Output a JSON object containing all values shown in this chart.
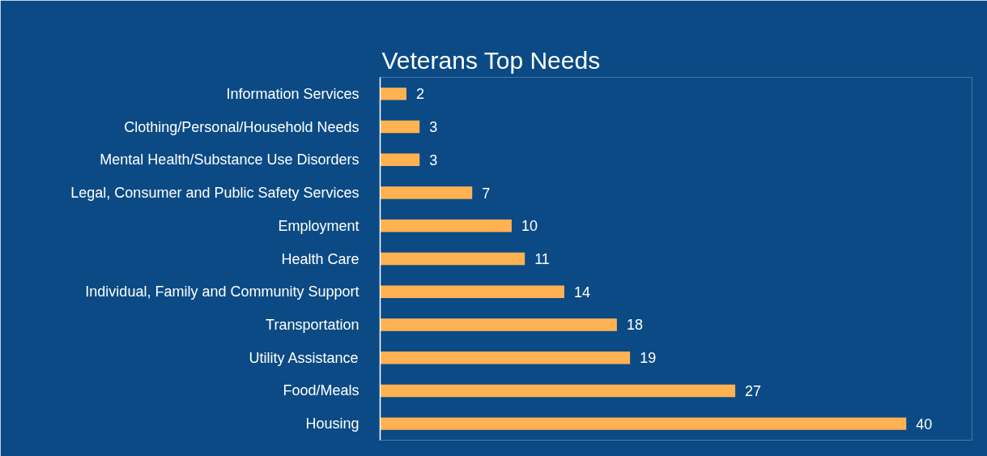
{
  "chart_data": {
    "type": "bar",
    "orientation": "horizontal",
    "title": "Veterans Top Needs",
    "categories": [
      "Information Services",
      "Clothing/Personal/Household Needs",
      "Mental Health/Substance Use Disorders",
      "Legal, Consumer and Public Safety Services",
      "Employment",
      "Health Care",
      "Individual, Family and Community Support",
      "Transportation",
      "Utility Assistance",
      "Food/Meals",
      "Housing"
    ],
    "values": [
      2,
      3,
      3,
      7,
      10,
      11,
      14,
      18,
      19,
      27,
      40
    ],
    "color": "#ffb251",
    "data_labels": true
  }
}
